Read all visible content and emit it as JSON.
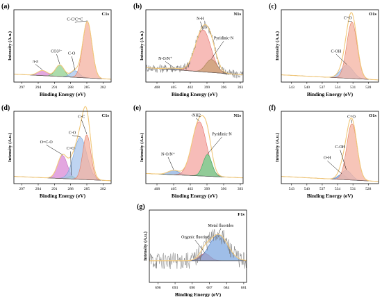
{
  "figure": {
    "xlabel": "Binding Energy (eV)",
    "ylabel": "Intensity (A.u.)"
  },
  "chart_data": [
    {
      "type": "line",
      "panel": "(a)",
      "corner": "C1s",
      "xlabel": "Binding Energy (eV)",
      "ylabel": "Intensity (A.u.)",
      "xlim": [
        298.5,
        280.5
      ],
      "xticks": [
        297,
        294,
        291,
        288,
        285,
        282
      ],
      "ylim": [
        0,
        1.0
      ],
      "background": {
        "left": 0.11,
        "right": 0.04,
        "color": "#555555"
      },
      "components": [
        {
          "label": "π-π",
          "center": 293.2,
          "height": 0.07,
          "width": 0.9,
          "fill": "#d98ad6",
          "stroke": "#c070c0",
          "ann_x": 294.5,
          "ann_y": 0.26
        },
        {
          "label": "CO3²⁻",
          "center": 290.0,
          "height": 0.16,
          "width": 0.8,
          "fill": "#90d090",
          "stroke": "#55aa55",
          "ann_x": 290.6,
          "ann_y": 0.4
        },
        {
          "label": "C-O",
          "center": 287.2,
          "height": 0.09,
          "width": 0.8,
          "fill": "#aac6ec",
          "stroke": "#6f9fd8",
          "ann_x": 287.8,
          "ann_y": 0.37
        },
        {
          "label": "C-C/C=C",
          "center": 284.9,
          "height": 0.78,
          "width": 0.85,
          "fill": "#f4b2a0",
          "stroke": "#e07a5f",
          "ann_x": 287.2,
          "ann_y": 0.84
        }
      ],
      "envelope_color": "#f3c97a",
      "experimental": {
        "color": "#777777",
        "noise": 0.0
      }
    },
    {
      "type": "line",
      "panel": "(b)",
      "corner": "N1s",
      "xlabel": "Binding Energy (eV)",
      "ylabel": "Intensity (A.u.)",
      "xlim": [
        410,
        392.5
      ],
      "xticks": [
        408,
        405,
        402,
        399,
        396,
        393
      ],
      "ylim": [
        0,
        1.0
      ],
      "background": {
        "left": 0.2,
        "right": 0.1,
        "color": "#555555"
      },
      "components": [
        {
          "label": "N-O/N⁺",
          "center": 405.0,
          "height": 0.02,
          "width": 1.2,
          "fill": "#8fb2e0",
          "stroke": "#5f8fd0",
          "ann_x": 406.5,
          "ann_y": 0.3
        },
        {
          "label": "N-H",
          "center": 399.7,
          "height": 0.58,
          "width": 1.4,
          "fill": "#f4a5a0",
          "stroke": "#e06f6a",
          "ann_x": 400.2,
          "ann_y": 0.85
        },
        {
          "label": "Pyridinic-N",
          "center": 398.2,
          "height": 0.18,
          "width": 1.0,
          "fill": "#c9a074",
          "stroke": "#a37a4f",
          "ann_x": 396.0,
          "ann_y": 0.58
        }
      ],
      "envelope_color": "#f3c97a",
      "experimental": {
        "color": "#6a6a6a",
        "noise": 0.06
      }
    },
    {
      "type": "line",
      "panel": "(c)",
      "corner": "O1s",
      "xlabel": "Binding Energy (eV)",
      "ylabel": "Intensity (A.u.)",
      "xlim": [
        545,
        526
      ],
      "xticks": [
        543,
        540,
        537,
        534,
        531,
        528
      ],
      "ylim": [
        0,
        1.0
      ],
      "background": {
        "left": 0.1,
        "right": 0.03,
        "color": "#555555"
      },
      "components": [
        {
          "label": "C-OH",
          "center": 532.2,
          "height": 0.18,
          "width": 1.2,
          "fill": "#aac6ec",
          "stroke": "#6f9fd8",
          "ann_x": 534.3,
          "ann_y": 0.4
        },
        {
          "label": "C=O",
          "center": 531.2,
          "height": 0.78,
          "width": 1.0,
          "fill": "#f4b2a0",
          "stroke": "#e07a5f",
          "ann_x": 532.0,
          "ann_y": 0.86
        }
      ],
      "envelope_color": "#f3c97a",
      "experimental": {
        "color": "#777777",
        "noise": 0.0
      }
    },
    {
      "type": "line",
      "panel": "(d)",
      "corner": "C1s",
      "xlabel": "Binding Energy (eV)",
      "ylabel": "Intensity (A.u.)",
      "xlim": [
        298.5,
        280.5
      ],
      "xticks": [
        297,
        294,
        291,
        288,
        285,
        282
      ],
      "ylim": [
        0,
        1.0
      ],
      "background": {
        "left": 0.1,
        "right": 0.04,
        "color": "#555555"
      },
      "components": [
        {
          "label": "O=C-O",
          "center": 289.5,
          "height": 0.32,
          "width": 0.9,
          "fill": "#d98ad6",
          "stroke": "#c070c0",
          "ann_x": 292.5,
          "ann_y": 0.55
        },
        {
          "label": "C=O",
          "center": 287.9,
          "height": 0.04,
          "width": 0.6,
          "fill": "#90d090",
          "stroke": "#55aa55",
          "ann_x": 288.0,
          "ann_y": 0.46
        },
        {
          "label": "C-O",
          "center": 286.2,
          "height": 0.58,
          "width": 1.2,
          "fill": "#aac6ec",
          "stroke": "#6f9fd8",
          "ann_x": 287.7,
          "ann_y": 0.68
        },
        {
          "label": "C-C",
          "center": 285.0,
          "height": 0.62,
          "width": 0.75,
          "fill": "#f4b2a0",
          "stroke": "#e07a5f",
          "ann_x": 286.0,
          "ann_y": 0.9
        }
      ],
      "envelope_color": "#f3c97a",
      "experimental": {
        "color": "#777777",
        "noise": 0.0
      }
    },
    {
      "type": "line",
      "panel": "(e)",
      "corner": "N1s",
      "xlabel": "Binding Energy (eV)",
      "ylabel": "Intensity (A.u.)",
      "xlim": [
        410,
        392.5
      ],
      "xticks": [
        408,
        405,
        402,
        399,
        396,
        393
      ],
      "ylim": [
        0,
        1.0
      ],
      "background": {
        "left": 0.14,
        "right": 0.08,
        "color": "#555555"
      },
      "components": [
        {
          "label": "N-O/N⁺",
          "center": 405.0,
          "height": 0.06,
          "width": 1.0,
          "fill": "#8fb2e0",
          "stroke": "#5f8fd0",
          "ann_x": 406.0,
          "ann_y": 0.38
        },
        {
          "label": "-NH2",
          "center": 400.4,
          "height": 0.75,
          "width": 1.3,
          "fill": "#f4a5a0",
          "stroke": "#e06f6a",
          "ann_x": 401.0,
          "ann_y": 0.92
        },
        {
          "label": "Pyridinic-N",
          "center": 398.9,
          "height": 0.3,
          "width": 0.8,
          "fill": "#6fd08c",
          "stroke": "#3aa860",
          "ann_x": 396.3,
          "ann_y": 0.66
        }
      ],
      "envelope_color": "#f3c97a",
      "experimental": {
        "color": "#777777",
        "noise": 0.0
      }
    },
    {
      "type": "line",
      "panel": "(f)",
      "corner": "O1s",
      "xlabel": "Binding Energy (eV)",
      "ylabel": "Intensity (A.u.)",
      "xlim": [
        545,
        526
      ],
      "xticks": [
        543,
        540,
        537,
        534,
        531,
        528
      ],
      "ylim": [
        0,
        1.0
      ],
      "background": {
        "left": 0.1,
        "right": 0.03,
        "color": "#555555"
      },
      "components": [
        {
          "label": "O-H",
          "center": 533.2,
          "height": 0.07,
          "width": 0.8,
          "fill": "#8fb2e0",
          "stroke": "#5f8fd0",
          "ann_x": 536.0,
          "ann_y": 0.33
        },
        {
          "label": "C-OH",
          "center": 532.3,
          "height": 0.13,
          "width": 1.0,
          "fill": "#aac6ec",
          "stroke": "#6f9fd8",
          "ann_x": 533.5,
          "ann_y": 0.48
        },
        {
          "label": "C=O",
          "center": 531.2,
          "height": 0.78,
          "width": 1.0,
          "fill": "#f4b2a0",
          "stroke": "#e07a5f",
          "ann_x": 531.3,
          "ann_y": 0.9
        }
      ],
      "envelope_color": "#f3c97a",
      "experimental": {
        "color": "#777777",
        "noise": 0.0
      }
    },
    {
      "type": "line",
      "panel": "(g)",
      "corner": "F1s",
      "xlabel": "Binding Energy (eV)",
      "ylabel": "Intensity (A.u.)",
      "xlim": [
        697.5,
        680.5
      ],
      "xticks": [
        696,
        693,
        690,
        687,
        684,
        681
      ],
      "ylim": [
        0,
        1.0
      ],
      "background": {
        "left": 0.3,
        "right": 0.3,
        "color": "#555555"
      },
      "components": [
        {
          "label": "Organic fluorine",
          "center": 687.8,
          "height": 0.1,
          "width": 0.9,
          "fill": "#f08080",
          "stroke": "#d05050",
          "ann_x": 689.5,
          "ann_y": 0.6
        },
        {
          "label": "Metal fluorides",
          "center": 685.4,
          "height": 0.36,
          "width": 1.6,
          "fill": "#7fa8e0",
          "stroke": "#4d7ccc",
          "ann_x": 685.0,
          "ann_y": 0.76
        }
      ],
      "envelope_color": "#f3c97a",
      "experimental": {
        "color": "#777777",
        "noise": 0.12
      }
    }
  ]
}
